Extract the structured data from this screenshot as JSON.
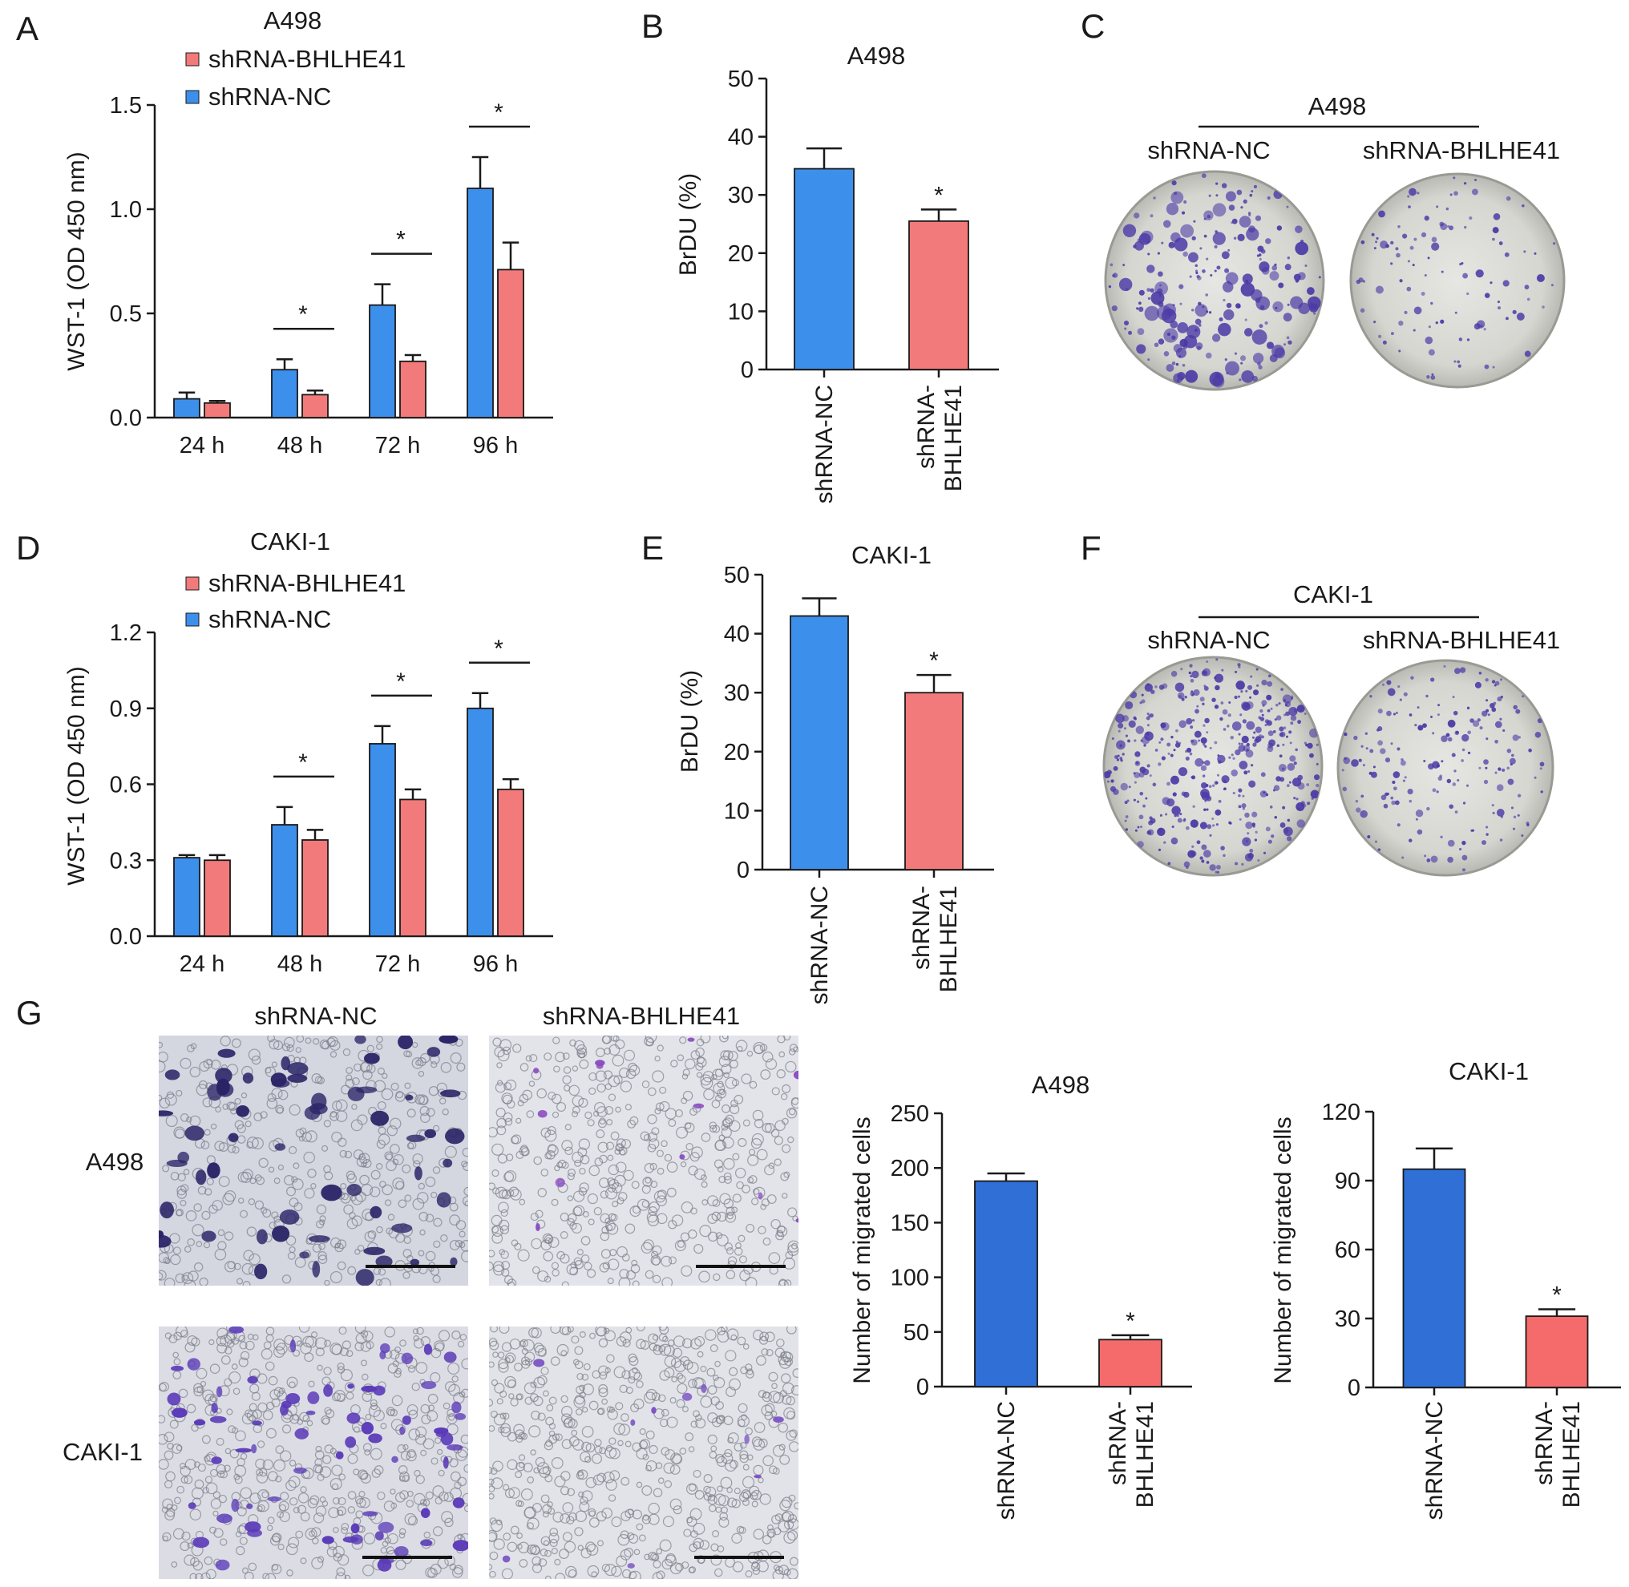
{
  "colors": {
    "nc": "#3d8fec",
    "bh": "#f37a7a",
    "nc_g": "#2f6fd6",
    "bh_g": "#f56b6b",
    "stain": "#4b3aa6",
    "plate": "#d9d9d4"
  },
  "panel_labels": [
    "A",
    "B",
    "C",
    "D",
    "E",
    "F",
    "G"
  ],
  "colony_panels": [
    {
      "id": "C",
      "cell_line": "A498",
      "groups": [
        "shRNA-NC",
        "shRNA-BHLHE41"
      ]
    },
    {
      "id": "F",
      "cell_line": "CAKI-1",
      "groups": [
        "shRNA-NC",
        "shRNA-BHLHE41"
      ]
    }
  ],
  "migration_images": {
    "columns": [
      "shRNA-NC",
      "shRNA-BHLHE41"
    ],
    "rows": [
      "A498",
      "CAKI-1"
    ]
  },
  "chart_data": [
    {
      "id": "A",
      "type": "bar",
      "title": "A498",
      "categories": [
        "24 h",
        "48 h",
        "72 h",
        "96 h"
      ],
      "legend": [
        "shRNA-BHLHE41",
        "shRNA-NC"
      ],
      "legend_position": "top-left",
      "series": [
        {
          "name": "shRNA-NC",
          "values": [
            0.09,
            0.23,
            0.54,
            1.1
          ],
          "errors": [
            0.03,
            0.05,
            0.1,
            0.15
          ]
        },
        {
          "name": "shRNA-BHLHE41",
          "values": [
            0.07,
            0.11,
            0.27,
            0.71
          ],
          "errors": [
            0.01,
            0.02,
            0.03,
            0.13
          ]
        }
      ],
      "significance": [
        "",
        "*",
        "*",
        "*"
      ],
      "ylabel": "WST-1 (OD 450 nm)",
      "xlabel": "",
      "ylim": [
        0,
        1.5
      ],
      "yticks": [
        0.0,
        0.5,
        1.0,
        1.5
      ],
      "ytick_labels": [
        "0.0",
        "0.5",
        "1.0",
        "1.5"
      ],
      "grid": false
    },
    {
      "id": "B",
      "type": "bar",
      "title": "A498",
      "categories": [
        "shRNA-NC",
        "shRNA-\nBHLHE41"
      ],
      "values": [
        34.5,
        25.5
      ],
      "errors": [
        3.5,
        2.0
      ],
      "significance": [
        "",
        "*"
      ],
      "ylabel": "BrDU (%)",
      "xlabel": "",
      "ylim": [
        0,
        50
      ],
      "yticks": [
        0,
        10,
        20,
        30,
        40,
        50
      ],
      "ytick_labels": [
        "0",
        "10",
        "20",
        "30",
        "40",
        "50"
      ],
      "grid": false
    },
    {
      "id": "D",
      "type": "bar",
      "title": "CAKI-1",
      "categories": [
        "24 h",
        "48 h",
        "72 h",
        "96 h"
      ],
      "legend": [
        "shRNA-BHLHE41",
        "shRNA-NC"
      ],
      "legend_position": "top-left",
      "series": [
        {
          "name": "shRNA-NC",
          "values": [
            0.31,
            0.44,
            0.76,
            0.9
          ],
          "errors": [
            0.01,
            0.07,
            0.07,
            0.06
          ]
        },
        {
          "name": "shRNA-BHLHE41",
          "values": [
            0.3,
            0.38,
            0.54,
            0.58
          ],
          "errors": [
            0.02,
            0.04,
            0.04,
            0.04
          ]
        }
      ],
      "significance": [
        "",
        "*",
        "*",
        "*"
      ],
      "ylabel": "WST-1 (OD 450 nm)",
      "xlabel": "",
      "ylim": [
        0,
        1.2
      ],
      "yticks": [
        0.0,
        0.3,
        0.6,
        0.9,
        1.2
      ],
      "ytick_labels": [
        "0.0",
        "0.3",
        "0.6",
        "0.9",
        "1.2"
      ],
      "grid": false
    },
    {
      "id": "E",
      "type": "bar",
      "title": "CAKI-1",
      "categories": [
        "shRNA-NC",
        "shRNA-\nBHLHE41"
      ],
      "values": [
        43,
        30
      ],
      "errors": [
        3,
        3
      ],
      "significance": [
        "",
        "*"
      ],
      "ylabel": "BrDU (%)",
      "xlabel": "",
      "ylim": [
        0,
        50
      ],
      "yticks": [
        0,
        10,
        20,
        30,
        40,
        50
      ],
      "ytick_labels": [
        "0",
        "10",
        "20",
        "30",
        "40",
        "50"
      ],
      "grid": false
    },
    {
      "id": "G1",
      "type": "bar",
      "title": "A498",
      "categories": [
        "shRNA-NC",
        "shRNA-\nBHLHE41"
      ],
      "values": [
        188,
        43
      ],
      "errors": [
        7,
        4
      ],
      "significance": [
        "",
        "*"
      ],
      "ylabel": "Number of migrated cells",
      "xlabel": "",
      "ylim": [
        0,
        250
      ],
      "yticks": [
        0,
        50,
        100,
        150,
        200,
        250
      ],
      "ytick_labels": [
        "0",
        "50",
        "100",
        "150",
        "200",
        "250"
      ],
      "grid": false
    },
    {
      "id": "G2",
      "type": "bar",
      "title": "CAKI-1",
      "categories": [
        "shRNA-NC",
        "shRNA-\nBHLHE41"
      ],
      "values": [
        95,
        31
      ],
      "errors": [
        9,
        3
      ],
      "significance": [
        "",
        "*"
      ],
      "ylabel": "Number of migrated cells",
      "xlabel": "",
      "ylim": [
        0,
        120
      ],
      "yticks": [
        0,
        30,
        60,
        90,
        120
      ],
      "ytick_labels": [
        "0",
        "30",
        "60",
        "90",
        "120"
      ],
      "grid": false
    }
  ]
}
